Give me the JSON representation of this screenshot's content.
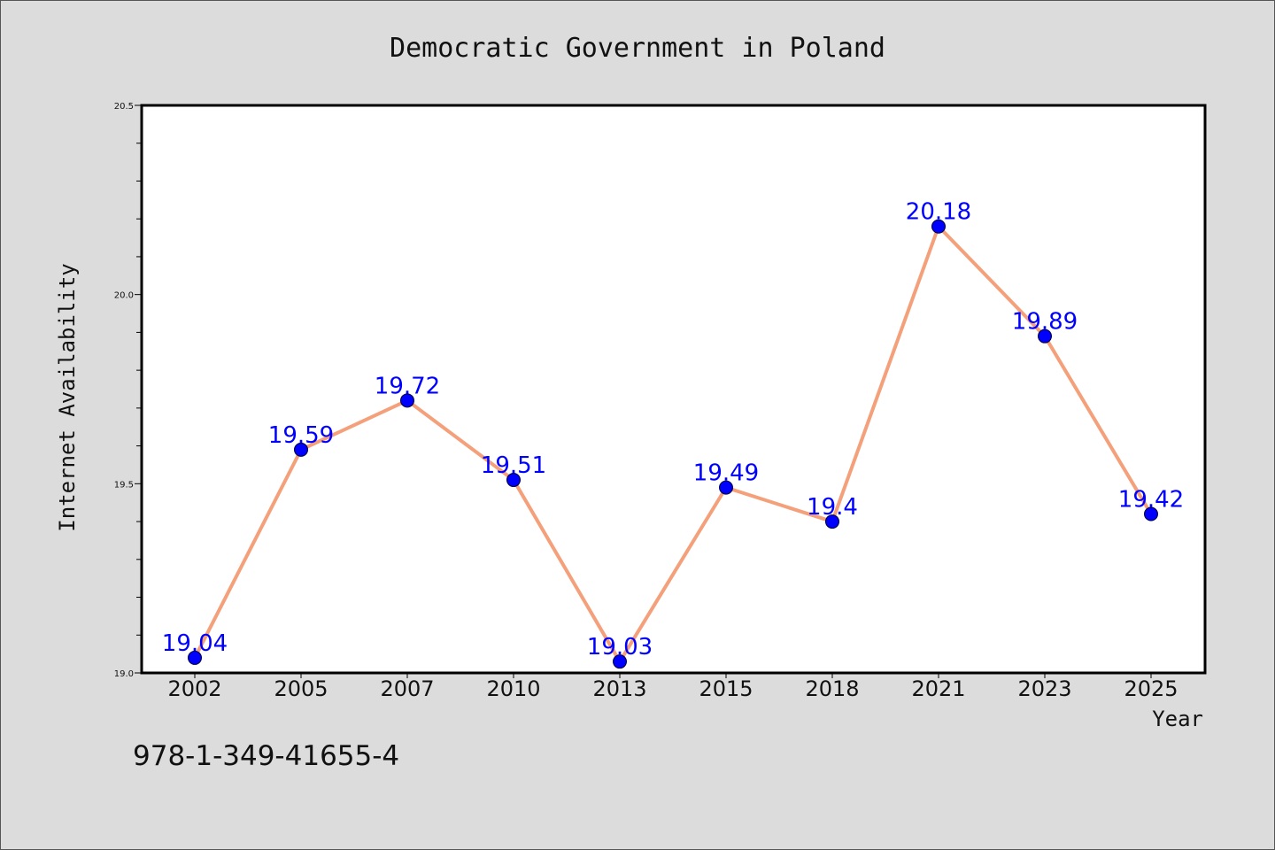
{
  "isbn": "978-1-349-41655-4",
  "chart_data": {
    "type": "line",
    "title": "Democratic Government in Poland",
    "xlabel": "Year",
    "ylabel": "Internet Availability",
    "categories": [
      "2002",
      "2005",
      "2007",
      "2010",
      "2013",
      "2015",
      "2018",
      "2021",
      "2023",
      "2025"
    ],
    "values": [
      19.04,
      19.59,
      19.72,
      19.51,
      19.03,
      19.49,
      19.4,
      20.18,
      19.89,
      19.42
    ],
    "data_labels": [
      "19.04",
      "19.59",
      "19.72",
      "19.51",
      "19.03",
      "19.49",
      "19.4",
      "20.18",
      "19.89",
      "19.42"
    ],
    "ylim": [
      19.0,
      20.5
    ],
    "yticks": [
      "19.0",
      "19.5",
      "20.0",
      "20.5"
    ],
    "grid": false,
    "line_color": "#f4a07a",
    "marker_color": "#0000ff",
    "label_color": "#0000ff"
  }
}
